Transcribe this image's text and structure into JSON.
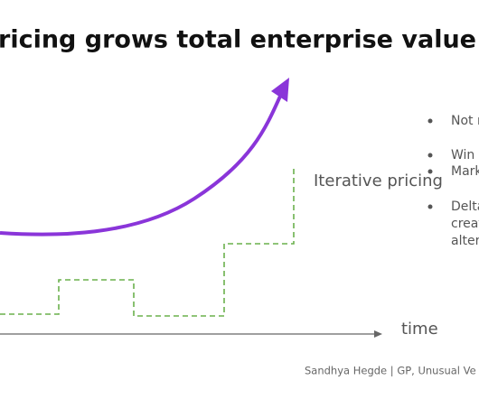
{
  "header": {
    "title": "ricing grows total enterprise value not"
  },
  "diagram": {
    "curve_label": "Iterative pricing",
    "axis_label": "time"
  },
  "bullets": [
    [
      "Not r"
    ],
    [
      "Win",
      "Mark"
    ],
    [
      "Delta",
      "creat",
      "alter"
    ]
  ],
  "footer": "Sandhya Hegde | GP, Unusual Ve"
}
